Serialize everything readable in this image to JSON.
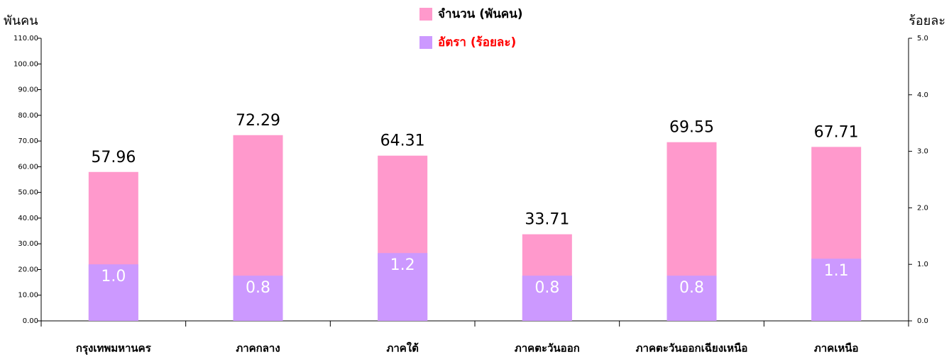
{
  "chart_data": {
    "type": "bar",
    "categories": [
      "กรุงเทพมหานคร",
      "ภาคกลาง",
      "ภาคใต้",
      "ภาคตะวันออก",
      "ภาคตะวันออกเฉียงเหนือ",
      "ภาคเหนือ"
    ],
    "series": [
      {
        "name": "จำนวน (พันคน)",
        "color": "#ff99cc",
        "legend_text_color": "#000000",
        "values": [
          57.96,
          72.29,
          64.31,
          33.71,
          69.55,
          67.71
        ]
      },
      {
        "name": "อัตรา (ร้อยละ)",
        "color": "#cc99ff",
        "legend_text_color": "#ff0000",
        "axis": "y2",
        "values": [
          1.0,
          0.8,
          1.2,
          0.8,
          0.8,
          1.1
        ],
        "value_labels": [
          "1.0",
          "0.8",
          "1.2",
          "0.8",
          "0.8",
          "1.1"
        ]
      }
    ],
    "ylabel": "พันคน",
    "y2label": "ร้อยละ",
    "ylim": [
      0,
      110
    ],
    "yticks": [
      {
        "value": 0,
        "label": "0.00"
      },
      {
        "value": 10,
        "label": "10.00"
      },
      {
        "value": 20,
        "label": "20.00"
      },
      {
        "value": 30,
        "label": "30.00"
      },
      {
        "value": 40,
        "label": "40.00"
      },
      {
        "value": 50,
        "label": "50.00"
      },
      {
        "value": 60,
        "label": "60.00"
      },
      {
        "value": 70,
        "label": "70.00"
      },
      {
        "value": 80,
        "label": "80.00"
      },
      {
        "value": 90,
        "label": "90.00"
      },
      {
        "value": 100,
        "label": "100.00"
      },
      {
        "value": 110,
        "label": "110.00"
      }
    ],
    "y2lim": [
      0,
      5
    ],
    "y2ticks": [
      {
        "value": 0,
        "label": "0.0"
      },
      {
        "value": 1,
        "label": "1.0"
      },
      {
        "value": 2,
        "label": "2.0"
      },
      {
        "value": 3,
        "label": "3.0"
      },
      {
        "value": 4,
        "label": "4.0"
      },
      {
        "value": 5,
        "label": "5.0"
      }
    ],
    "legend": "top-center",
    "grid": false
  }
}
